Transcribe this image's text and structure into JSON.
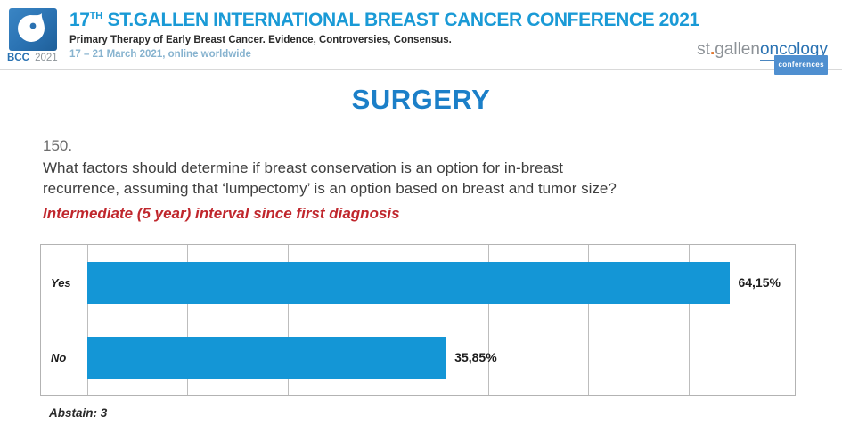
{
  "header": {
    "logo": {
      "bcc": "BCC",
      "year": "2021"
    },
    "title": {
      "num": "17",
      "sup": "TH",
      "rest": " ST.GALLEN INTERNATIONAL BREAST CANCER CONFERENCE 2021"
    },
    "subtitle": "Primary Therapy of Early Breast Cancer. Evidence, Controversies, Consensus.",
    "dates": "17 – 21 March 2021, online worldwide",
    "brand": {
      "st": "st",
      "dot": ".",
      "gallen": "gallen",
      "oncology": "oncology",
      "conferences": "conferences"
    }
  },
  "slide": {
    "section_title": "SURGERY",
    "question_number": "150.",
    "question_line1": "What factors should determine if breast conservation is an option for in-breast",
    "question_line2": "recurrence, assuming that ‘lumpectomy’ is an option based on breast and tumor size?",
    "question_note": "Intermediate (5 year) interval since first diagnosis",
    "abstain_label": "Abstain: 3"
  },
  "chart_data": {
    "type": "bar",
    "orientation": "horizontal",
    "categories": [
      "Yes",
      "No"
    ],
    "values": [
      64.15,
      35.85
    ],
    "value_labels": [
      "64,15%",
      "35,85%"
    ],
    "xlim": [
      0,
      70.6
    ],
    "grid_every": 10,
    "grid_on": true,
    "legend": "none",
    "bar_color": "#1496d6",
    "abstain": 3
  },
  "colors": {
    "title-blue": "#1a9ad6",
    "surgery-blue": "#1b7fc8",
    "note-red": "#c0272d",
    "date-blue": "#87b3cf",
    "brand-blue": "#2a72b2",
    "brand-orange": "#e2762d",
    "bar-blue": "#1496d6"
  }
}
